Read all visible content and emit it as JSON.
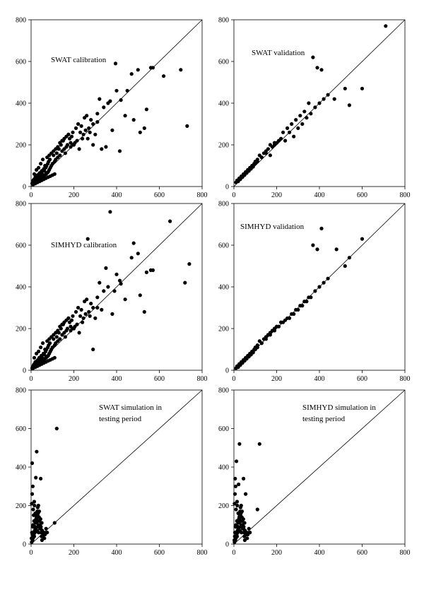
{
  "chart_data": [
    {
      "type": "scatter",
      "annotation": [
        "SWAT calibration"
      ],
      "xlim": [
        0,
        800
      ],
      "ylim": [
        0,
        800
      ],
      "xticks": [
        0,
        200,
        400,
        600,
        800
      ],
      "yticks": [
        0,
        200,
        400,
        600,
        800
      ],
      "one_to_one_line": true,
      "x": [
        5,
        8,
        10,
        12,
        15,
        18,
        20,
        22,
        25,
        28,
        30,
        32,
        35,
        38,
        40,
        42,
        45,
        48,
        50,
        52,
        55,
        58,
        60,
        62,
        65,
        68,
        70,
        72,
        75,
        78,
        80,
        82,
        85,
        88,
        90,
        95,
        100,
        105,
        110,
        115,
        120,
        125,
        130,
        135,
        140,
        145,
        150,
        155,
        160,
        165,
        170,
        175,
        180,
        185,
        190,
        195,
        200,
        210,
        220,
        230,
        240,
        250,
        260,
        270,
        280,
        290,
        300,
        310,
        320,
        340,
        360,
        380,
        400,
        420,
        440,
        470,
        500,
        530,
        560,
        570,
        620,
        700,
        730,
        10,
        20,
        30,
        40,
        50,
        60,
        70,
        80,
        90,
        100,
        110,
        15,
        25,
        35,
        45,
        55,
        65,
        75,
        85,
        95,
        105,
        115,
        125,
        135,
        145,
        155,
        165,
        175,
        185,
        195,
        205,
        215,
        225,
        235,
        245,
        255,
        265,
        275,
        290,
        310,
        330,
        350,
        370,
        395,
        415,
        450,
        480,
        510,
        540,
        20,
        30,
        40,
        50,
        60,
        70
      ],
      "y": [
        15,
        20,
        30,
        25,
        35,
        20,
        40,
        30,
        25,
        45,
        35,
        50,
        30,
        60,
        40,
        55,
        35,
        70,
        45,
        60,
        50,
        80,
        40,
        75,
        55,
        90,
        60,
        100,
        65,
        110,
        70,
        120,
        80,
        130,
        90,
        100,
        110,
        150,
        120,
        130,
        160,
        140,
        180,
        150,
        200,
        170,
        220,
        180,
        160,
        190,
        200,
        250,
        230,
        210,
        240,
        260,
        200,
        280,
        300,
        260,
        230,
        330,
        340,
        280,
        320,
        300,
        250,
        350,
        420,
        380,
        400,
        270,
        460,
        415,
        340,
        540,
        560,
        280,
        570,
        570,
        530,
        560,
        290,
        10,
        15,
        20,
        25,
        30,
        35,
        40,
        45,
        50,
        55,
        60,
        60,
        80,
        90,
        110,
        130,
        100,
        140,
        150,
        160,
        170,
        180,
        190,
        210,
        220,
        230,
        240,
        250,
        190,
        200,
        210,
        220,
        180,
        290,
        250,
        270,
        230,
        260,
        200,
        310,
        180,
        190,
        410,
        590,
        170,
        460,
        320,
        260,
        370,
        45,
        55,
        65,
        75,
        85,
        95
      ]
    },
    {
      "type": "scatter",
      "annotation": [
        "SWAT validation"
      ],
      "xlim": [
        0,
        800
      ],
      "ylim": [
        0,
        800
      ],
      "xticks": [
        0,
        200,
        400,
        600,
        800
      ],
      "yticks": [
        0,
        200,
        400,
        600,
        800
      ],
      "one_to_one_line": true,
      "x": [
        10,
        15,
        20,
        25,
        30,
        35,
        40,
        45,
        50,
        55,
        60,
        65,
        70,
        75,
        80,
        85,
        90,
        95,
        100,
        110,
        120,
        130,
        140,
        150,
        160,
        170,
        180,
        190,
        200,
        220,
        240,
        260,
        280,
        300,
        320,
        340,
        360,
        380,
        400,
        420,
        440,
        470,
        520,
        540,
        600,
        710,
        20,
        30,
        40,
        50,
        60,
        70,
        80,
        90,
        100,
        110,
        130,
        150,
        170,
        190,
        210,
        230,
        250,
        270,
        290,
        310,
        330,
        350,
        370,
        390,
        410
      ],
      "y": [
        20,
        30,
        25,
        40,
        35,
        50,
        45,
        60,
        55,
        70,
        65,
        80,
        75,
        90,
        85,
        100,
        95,
        110,
        120,
        130,
        150,
        140,
        160,
        170,
        180,
        150,
        190,
        200,
        210,
        230,
        220,
        260,
        240,
        280,
        300,
        330,
        350,
        380,
        400,
        420,
        440,
        420,
        470,
        390,
        470,
        770,
        30,
        40,
        50,
        60,
        70,
        80,
        90,
        100,
        110,
        120,
        140,
        160,
        200,
        210,
        220,
        260,
        280,
        300,
        320,
        340,
        360,
        400,
        620,
        570,
        560
      ]
    },
    {
      "type": "scatter",
      "annotation": [
        "SIMHYD calibration"
      ],
      "xlim": [
        0,
        800
      ],
      "ylim": [
        0,
        800
      ],
      "xticks": [
        0,
        200,
        400,
        600,
        800
      ],
      "yticks": [
        0,
        200,
        400,
        600,
        800
      ],
      "one_to_one_line": true,
      "x": [
        5,
        8,
        10,
        12,
        15,
        18,
        20,
        22,
        25,
        28,
        30,
        32,
        35,
        38,
        40,
        42,
        45,
        48,
        50,
        52,
        55,
        58,
        60,
        62,
        65,
        68,
        70,
        72,
        75,
        78,
        80,
        82,
        85,
        88,
        90,
        95,
        100,
        105,
        110,
        115,
        120,
        125,
        130,
        135,
        140,
        145,
        150,
        155,
        160,
        165,
        170,
        175,
        180,
        185,
        190,
        195,
        200,
        210,
        220,
        230,
        240,
        250,
        260,
        270,
        280,
        290,
        300,
        310,
        320,
        340,
        360,
        380,
        400,
        420,
        440,
        470,
        500,
        530,
        560,
        570,
        650,
        720,
        740,
        10,
        20,
        30,
        40,
        50,
        60,
        70,
        80,
        90,
        100,
        110,
        15,
        25,
        35,
        45,
        55,
        65,
        75,
        85,
        95,
        105,
        115,
        125,
        135,
        145,
        155,
        165,
        175,
        185,
        195,
        205,
        215,
        225,
        235,
        245,
        255,
        265,
        275,
        290,
        310,
        330,
        350,
        370,
        390,
        415,
        480,
        510,
        540
      ],
      "y": [
        10,
        15,
        20,
        25,
        30,
        20,
        40,
        30,
        25,
        45,
        35,
        50,
        30,
        60,
        40,
        55,
        35,
        70,
        45,
        60,
        50,
        80,
        40,
        75,
        55,
        90,
        60,
        100,
        65,
        110,
        70,
        120,
        80,
        130,
        90,
        100,
        110,
        150,
        120,
        130,
        160,
        140,
        180,
        150,
        200,
        170,
        220,
        180,
        160,
        190,
        200,
        250,
        230,
        210,
        240,
        260,
        200,
        280,
        300,
        260,
        230,
        330,
        340,
        280,
        320,
        300,
        250,
        350,
        420,
        380,
        400,
        270,
        460,
        415,
        340,
        540,
        560,
        280,
        480,
        480,
        715,
        420,
        510,
        10,
        15,
        20,
        25,
        30,
        35,
        40,
        45,
        50,
        55,
        60,
        60,
        80,
        90,
        110,
        130,
        100,
        140,
        150,
        160,
        170,
        180,
        190,
        210,
        220,
        230,
        240,
        250,
        190,
        200,
        210,
        220,
        180,
        290,
        250,
        270,
        630,
        260,
        100,
        300,
        290,
        490,
        760,
        380,
        430,
        610,
        360,
        470
      ]
    },
    {
      "type": "scatter",
      "annotation": [
        "SIMHYD validation"
      ],
      "xlim": [
        0,
        800
      ],
      "ylim": [
        0,
        800
      ],
      "xticks": [
        0,
        200,
        400,
        600,
        800
      ],
      "yticks": [
        0,
        200,
        400,
        600,
        800
      ],
      "one_to_one_line": true,
      "x": [
        10,
        15,
        20,
        25,
        30,
        35,
        40,
        45,
        50,
        55,
        60,
        65,
        70,
        75,
        80,
        85,
        90,
        95,
        100,
        110,
        120,
        130,
        140,
        150,
        160,
        170,
        180,
        190,
        200,
        220,
        240,
        260,
        280,
        300,
        320,
        340,
        360,
        380,
        400,
        420,
        440,
        480,
        520,
        540,
        600,
        20,
        30,
        40,
        50,
        60,
        70,
        80,
        90,
        100,
        110,
        130,
        150,
        170,
        190,
        210,
        230,
        250,
        270,
        290,
        310,
        330,
        350,
        370,
        390,
        410
      ],
      "y": [
        10,
        20,
        15,
        30,
        25,
        40,
        35,
        50,
        45,
        60,
        55,
        70,
        65,
        80,
        75,
        90,
        85,
        100,
        110,
        120,
        140,
        130,
        150,
        160,
        170,
        180,
        190,
        200,
        210,
        230,
        240,
        250,
        270,
        290,
        310,
        330,
        350,
        380,
        400,
        420,
        440,
        580,
        500,
        540,
        630,
        20,
        30,
        40,
        50,
        60,
        70,
        80,
        90,
        100,
        110,
        130,
        150,
        170,
        190,
        210,
        230,
        250,
        270,
        290,
        310,
        330,
        350,
        600,
        580,
        680
      ]
    },
    {
      "type": "scatter",
      "annotation": [
        "SWAT simulation in",
        "testing period"
      ],
      "xlim": [
        0,
        800
      ],
      "ylim": [
        0,
        800
      ],
      "xticks": [
        0,
        200,
        400,
        600,
        800
      ],
      "yticks": [
        0,
        200,
        400,
        600,
        800
      ],
      "one_to_one_line": true,
      "x": [
        2,
        4,
        5,
        6,
        8,
        10,
        12,
        14,
        15,
        16,
        18,
        20,
        22,
        24,
        25,
        26,
        28,
        30,
        32,
        34,
        35,
        36,
        38,
        40,
        42,
        44,
        45,
        46,
        48,
        50,
        52,
        55,
        58,
        60,
        62,
        65,
        70,
        75,
        110,
        120,
        3,
        7,
        9,
        11,
        13,
        17,
        19,
        21,
        23,
        27,
        29,
        31,
        33,
        37,
        39,
        41,
        43,
        47,
        49,
        51,
        3,
        5,
        8,
        10,
        15,
        20,
        25,
        30,
        35,
        45
      ],
      "y": [
        30,
        60,
        420,
        50,
        90,
        100,
        150,
        120,
        40,
        200,
        60,
        80,
        345,
        110,
        130,
        480,
        70,
        150,
        90,
        200,
        60,
        120,
        170,
        100,
        80,
        130,
        340,
        90,
        60,
        110,
        70,
        40,
        50,
        60,
        30,
        50,
        80,
        60,
        110,
        600,
        10,
        20,
        30,
        40,
        50,
        70,
        90,
        110,
        130,
        150,
        170,
        190,
        160,
        140,
        120,
        100,
        80,
        60,
        40,
        20,
        210,
        260,
        300,
        180,
        220,
        160,
        140,
        120,
        100,
        80
      ]
    },
    {
      "type": "scatter",
      "annotation": [
        "SIMHYD simulation in",
        "testing period"
      ],
      "xlim": [
        0,
        800
      ],
      "ylim": [
        0,
        800
      ],
      "xticks": [
        0,
        200,
        400,
        600,
        800
      ],
      "yticks": [
        0,
        200,
        400,
        600,
        800
      ],
      "one_to_one_line": true,
      "x": [
        2,
        4,
        5,
        6,
        8,
        10,
        12,
        14,
        15,
        16,
        18,
        20,
        22,
        24,
        25,
        26,
        28,
        30,
        32,
        34,
        35,
        36,
        38,
        40,
        42,
        44,
        45,
        46,
        48,
        50,
        52,
        55,
        58,
        60,
        62,
        65,
        70,
        75,
        110,
        120,
        3,
        7,
        9,
        11,
        13,
        17,
        19,
        21,
        23,
        27,
        29,
        31,
        33,
        37,
        39,
        41,
        43,
        47,
        49,
        51,
        3,
        5,
        8,
        10,
        15,
        20,
        25,
        30,
        35,
        45
      ],
      "y": [
        20,
        40,
        60,
        340,
        90,
        100,
        430,
        120,
        40,
        200,
        60,
        80,
        310,
        110,
        130,
        520,
        70,
        150,
        90,
        200,
        60,
        120,
        170,
        100,
        80,
        130,
        340,
        90,
        60,
        110,
        70,
        260,
        50,
        60,
        30,
        50,
        80,
        60,
        180,
        520,
        10,
        20,
        30,
        40,
        50,
        70,
        90,
        110,
        130,
        150,
        170,
        190,
        160,
        140,
        120,
        100,
        80,
        60,
        40,
        20,
        210,
        260,
        300,
        180,
        220,
        160,
        140,
        120,
        100,
        80
      ]
    }
  ]
}
